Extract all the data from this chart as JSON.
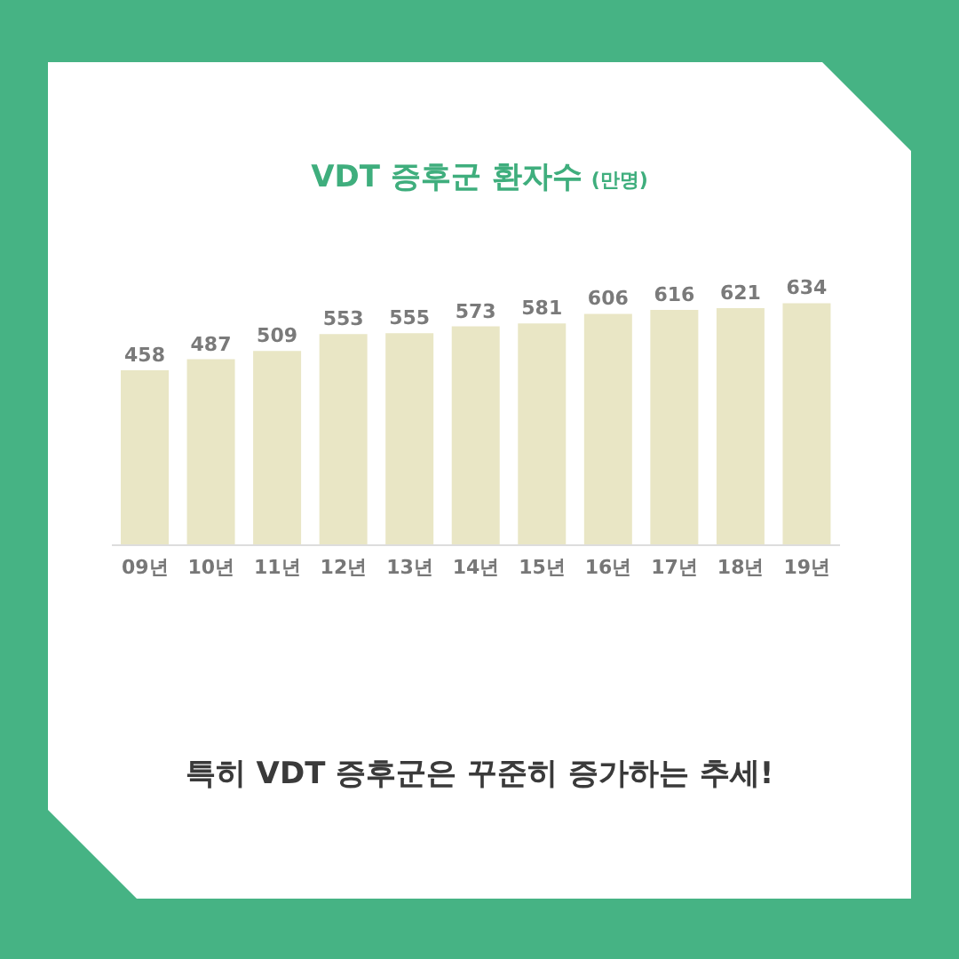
{
  "chart_data": {
    "type": "bar",
    "title": "VDT 증후군 환자수",
    "subtitle": "(만명)",
    "categories": [
      "09년",
      "10년",
      "11년",
      "12년",
      "13년",
      "14년",
      "15년",
      "16년",
      "17년",
      "18년",
      "19년"
    ],
    "values": [
      458,
      487,
      509,
      553,
      555,
      573,
      581,
      606,
      616,
      621,
      634
    ],
    "color": "#e9e6c5",
    "tick_labels": "x",
    "data_labels": true,
    "annotations": [
      "특히 VDT 증후군은 꾸준히 증가하는 추세!"
    ]
  }
}
